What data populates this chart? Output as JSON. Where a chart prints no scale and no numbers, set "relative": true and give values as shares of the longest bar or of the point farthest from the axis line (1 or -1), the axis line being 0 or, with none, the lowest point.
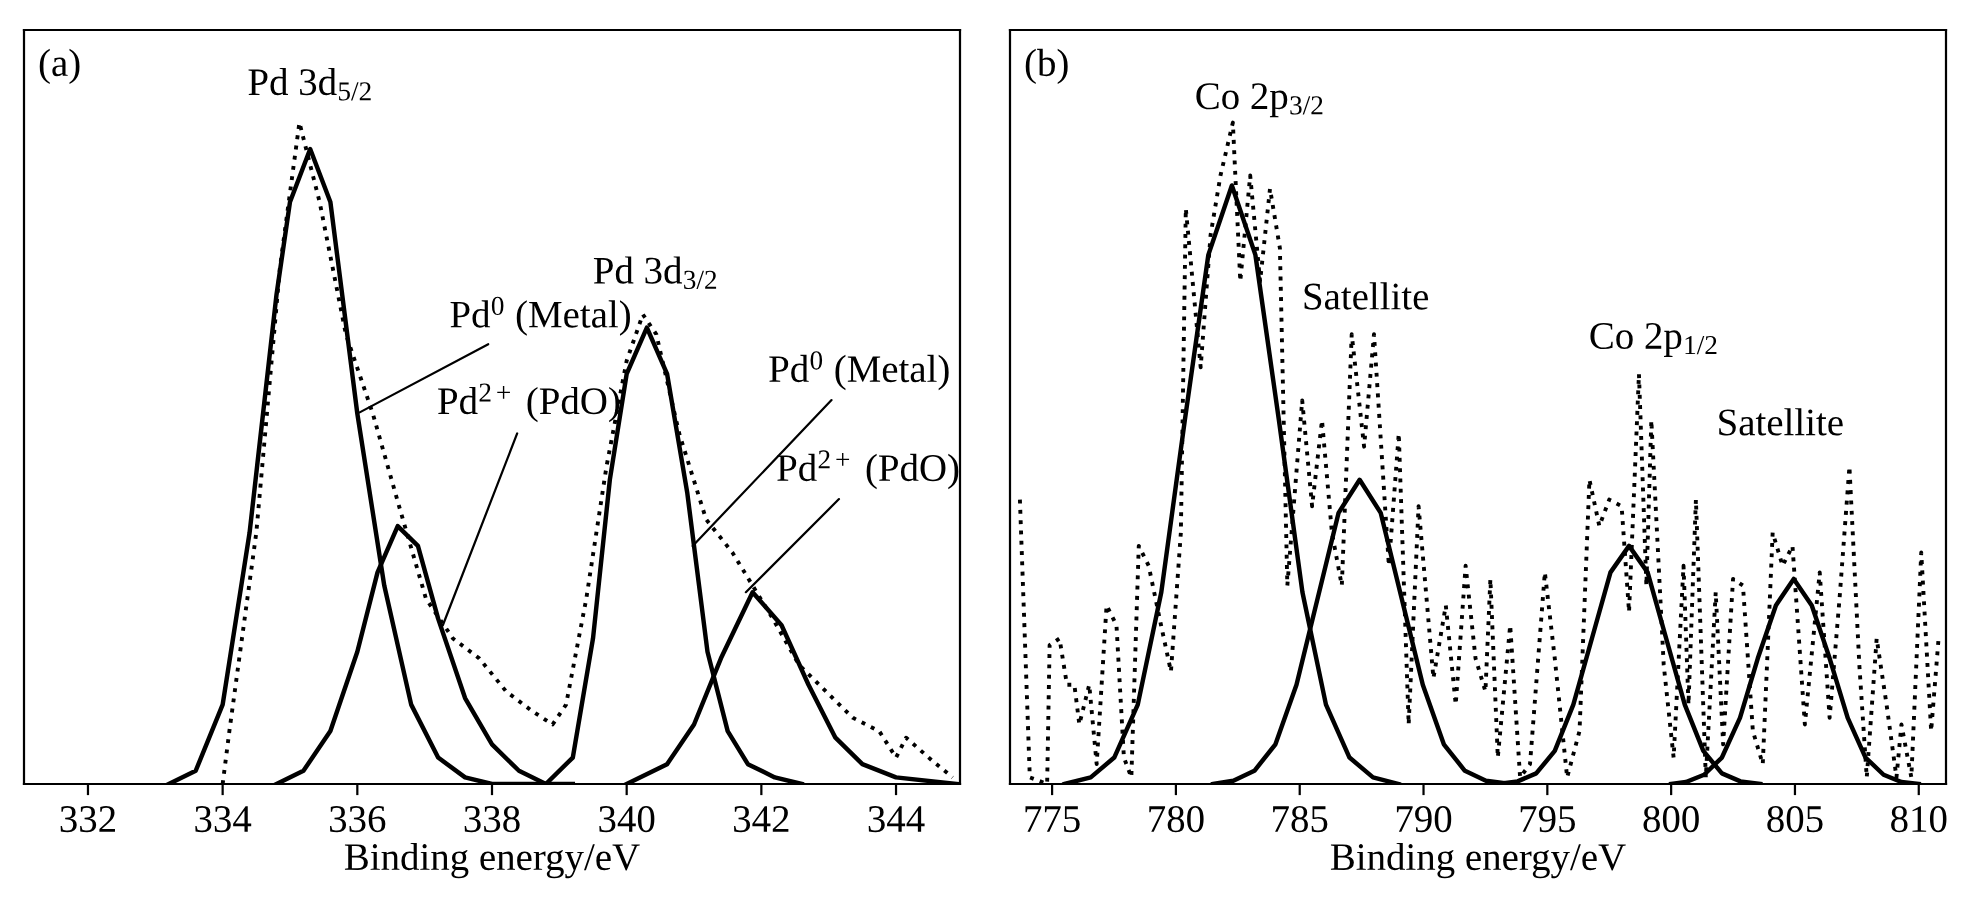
{
  "chart_data": [
    {
      "type": "line",
      "relative": true,
      "xlabel": "Binding energy/eV",
      "xlim": [
        331.05,
        344.95
      ],
      "xticks": [
        332,
        334,
        336,
        338,
        340,
        342,
        344
      ],
      "grid": false,
      "legend": false,
      "tick_labels": "x",
      "annotations": [
        "(a)",
        "Pd 3d$_{5/2}$",
        {
          "text": "Pd$^{0}$ (Metal)",
          "x": 336.0,
          "y": 0.56
        },
        {
          "text": "Pd$^{2+}$ (PdO)",
          "x": 337.27,
          "y": 0.24
        },
        "Pd 3d$_{3/2}$",
        {
          "text": "Pd$^{0}$ (Metal)",
          "x": 340.98,
          "y": 0.36
        },
        {
          "text": "Pd$^{2+}$ (PdO)",
          "x": 341.77,
          "y": 0.29
        }
      ],
      "series": [
        {
          "color": "#000000",
          "line_style": "dotted",
          "x": [
            334.0,
            334.1,
            334.5,
            334.85,
            335.14,
            335.44,
            335.83,
            336.23,
            336.62,
            337.02,
            337.42,
            337.81,
            338.21,
            338.6,
            338.9,
            339.1,
            339.4,
            339.7,
            340.0,
            340.24,
            340.44,
            340.78,
            341.18,
            341.57,
            341.87,
            342.17,
            342.56,
            342.96,
            343.36,
            343.75,
            344.0,
            344.15,
            344.54,
            344.84
          ],
          "values": [
            0,
            0.08,
            0.38,
            0.78,
            1.0,
            0.88,
            0.68,
            0.56,
            0.42,
            0.28,
            0.22,
            0.19,
            0.14,
            0.11,
            0.09,
            0.12,
            0.28,
            0.48,
            0.64,
            0.71,
            0.68,
            0.53,
            0.4,
            0.35,
            0.3,
            0.25,
            0.18,
            0.14,
            0.1,
            0.08,
            0.04,
            0.07,
            0.035,
            0.01
          ]
        },
        {
          "color": "#000000",
          "line_style": "solid",
          "x": [
            333.2,
            333.6,
            334.0,
            334.4,
            334.8,
            335.0,
            335.3,
            335.6,
            336.0,
            336.4,
            336.8,
            337.2,
            337.6,
            338.0,
            338.8
          ],
          "values": [
            0,
            0.02,
            0.12,
            0.38,
            0.74,
            0.88,
            0.96,
            0.88,
            0.56,
            0.3,
            0.12,
            0.04,
            0.01,
            0,
            0
          ]
        },
        {
          "color": "#000000",
          "line_style": "solid",
          "x": [
            334.8,
            335.2,
            335.6,
            336.0,
            336.3,
            336.6,
            336.9,
            337.2,
            337.6,
            338.0,
            338.4,
            338.8,
            339.2
          ],
          "values": [
            0,
            0.02,
            0.08,
            0.2,
            0.32,
            0.39,
            0.36,
            0.25,
            0.13,
            0.06,
            0.02,
            0,
            0
          ]
        },
        {
          "color": "#000000",
          "line_style": "solid",
          "x": [
            338.8,
            339.2,
            339.5,
            339.75,
            340.0,
            340.3,
            340.6,
            340.9,
            341.2,
            341.5,
            341.8,
            342.2,
            342.6
          ],
          "values": [
            0,
            0.04,
            0.22,
            0.46,
            0.62,
            0.69,
            0.62,
            0.44,
            0.2,
            0.08,
            0.03,
            0.01,
            0
          ]
        },
        {
          "color": "#000000",
          "line_style": "solid",
          "x": [
            340.0,
            340.6,
            341.0,
            341.4,
            341.87,
            342.3,
            342.7,
            343.1,
            343.5,
            344.0,
            344.9
          ],
          "values": [
            0,
            0.03,
            0.09,
            0.19,
            0.29,
            0.24,
            0.15,
            0.07,
            0.03,
            0.01,
            0
          ]
        }
      ]
    },
    {
      "type": "line",
      "relative": true,
      "xlabel": "Binding energy/eV",
      "xlim": [
        773.3,
        811.1
      ],
      "xticks": [
        775,
        780,
        785,
        790,
        795,
        800,
        805,
        810
      ],
      "grid": false,
      "legend": false,
      "tick_labels": "x",
      "annotations": [
        "(b)",
        "Co 2p$_{3/2}$",
        "Satellite",
        "Co 2p$_{1/2}$",
        "Satellite"
      ],
      "series": [
        {
          "color": "#000000",
          "line_style": "dotted",
          "x": [
            773.7,
            774.1,
            774.8,
            774.9,
            775.3,
            775.6,
            775.9,
            776.1,
            776.5,
            776.8,
            777.2,
            777.6,
            777.9,
            778.2,
            778.5,
            778.9,
            779.4,
            779.8,
            780.2,
            780.4,
            781.0,
            781.4,
            781.8,
            782.3,
            782.6,
            783.0,
            783.4,
            783.8,
            784.2,
            784.5,
            785.1,
            785.5,
            785.9,
            786.3,
            786.7,
            787.1,
            787.6,
            788.0,
            788.6,
            789.0,
            789.4,
            789.8,
            790.1,
            790.4,
            790.9,
            791.3,
            791.7,
            792.1,
            792.5,
            792.7,
            793.0,
            793.5,
            793.9,
            794.3,
            794.9,
            795.3,
            795.8,
            796.3,
            796.7,
            797.1,
            797.5,
            798.0,
            798.3,
            798.7,
            799.0,
            799.2,
            799.7,
            800.1,
            800.5,
            800.7,
            801.0,
            801.4,
            801.8,
            802.1,
            802.5,
            802.9,
            803.3,
            803.7,
            804.1,
            804.5,
            804.9,
            805.4,
            806.0,
            806.4,
            806.8,
            807.2,
            807.6,
            807.9,
            808.3,
            808.7,
            809.1,
            809.3,
            809.7,
            810.1,
            810.5,
            810.8
          ],
          "values": [
            0.43,
            0.01,
            0,
            0.21,
            0.22,
            0.15,
            0.15,
            0.09,
            0.15,
            0.03,
            0.27,
            0.24,
            0.04,
            0.01,
            0.36,
            0.33,
            0.24,
            0.17,
            0.38,
            0.87,
            0.63,
            0.83,
            0.92,
            1.0,
            0.76,
            0.92,
            0.76,
            0.9,
            0.81,
            0.3,
            0.58,
            0.42,
            0.55,
            0.38,
            0.3,
            0.68,
            0.51,
            0.68,
            0.33,
            0.53,
            0.09,
            0.42,
            0.29,
            0.16,
            0.27,
            0.12,
            0.33,
            0.19,
            0.14,
            0.31,
            0.04,
            0.24,
            0.01,
            0.03,
            0.32,
            0.19,
            0.01,
            0.08,
            0.46,
            0.39,
            0.43,
            0.42,
            0.26,
            0.62,
            0.3,
            0.55,
            0.18,
            0.04,
            0.33,
            0.12,
            0.43,
            0.01,
            0.29,
            0.06,
            0.31,
            0.3,
            0.08,
            0.03,
            0.38,
            0.33,
            0.36,
            0.09,
            0.32,
            0.1,
            0.28,
            0.48,
            0.18,
            0.01,
            0.22,
            0.12,
            0.01,
            0.09,
            0.01,
            0.35,
            0.08,
            0.22
          ]
        },
        {
          "color": "#000000",
          "line_style": "solid",
          "x": [
            775.5,
            776.56,
            777.51,
            778.46,
            779.41,
            780.36,
            781.31,
            782.26,
            783.21,
            784.16,
            785.11,
            786.06,
            787.01,
            787.96,
            789.0
          ],
          "values": [
            0,
            0.01,
            0.04,
            0.12,
            0.29,
            0.55,
            0.8,
            0.905,
            0.8,
            0.55,
            0.29,
            0.12,
            0.04,
            0.01,
            0
          ]
        },
        {
          "color": "#000000",
          "line_style": "solid",
          "x": [
            781.5,
            782.32,
            783.17,
            784.02,
            784.87,
            785.72,
            786.57,
            787.42,
            788.27,
            789.12,
            789.97,
            790.82,
            791.67,
            792.52,
            793.5
          ],
          "values": [
            0,
            0.005,
            0.02,
            0.06,
            0.15,
            0.28,
            0.41,
            0.46,
            0.41,
            0.28,
            0.15,
            0.06,
            0.02,
            0.005,
            0
          ]
        },
        {
          "color": "#000000",
          "line_style": "solid",
          "x": [
            793.0,
            793.8,
            794.55,
            795.3,
            796.05,
            796.8,
            797.55,
            798.3,
            799.05,
            799.8,
            800.55,
            801.3,
            802.05,
            802.8,
            803.6
          ],
          "values": [
            0,
            0.004,
            0.016,
            0.05,
            0.12,
            0.22,
            0.32,
            0.36,
            0.32,
            0.22,
            0.12,
            0.05,
            0.016,
            0.004,
            0
          ]
        },
        {
          "color": "#000000",
          "line_style": "solid",
          "x": [
            800.0,
            800.6,
            801.33,
            802.05,
            802.78,
            803.5,
            804.23,
            804.95,
            805.68,
            806.4,
            807.13,
            807.85,
            808.58,
            809.3,
            810.0
          ],
          "values": [
            0,
            0.003,
            0.014,
            0.04,
            0.1,
            0.19,
            0.27,
            0.31,
            0.27,
            0.19,
            0.1,
            0.04,
            0.014,
            0.003,
            0
          ]
        }
      ]
    }
  ]
}
